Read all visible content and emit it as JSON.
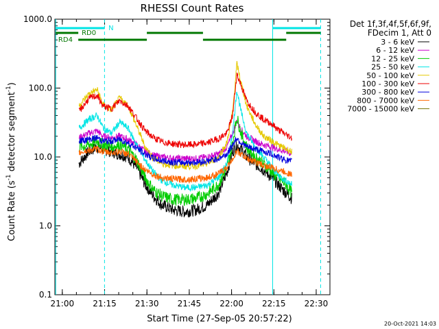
{
  "chart_data": {
    "type": "line",
    "title": "RHESSI Count Rates",
    "xlabel": "Start Time (27-Sep-05 20:57:22)",
    "ylabel_parts": [
      "Count Rate (s",
      "-1",
      " detector segment",
      "-1",
      ")"
    ],
    "yscale": "log",
    "ylim": [
      0.1,
      1000
    ],
    "xlim_minutes": [
      0,
      62
    ],
    "y_tick_labels": [
      "0.1",
      "1.0",
      "10.0",
      "100.0",
      "1000.0"
    ],
    "x_ticks": [
      {
        "label": "21:00",
        "minutes": 2.63
      },
      {
        "label": "21:15",
        "minutes": 17.63
      },
      {
        "label": "21:30",
        "minutes": 32.63
      },
      {
        "label": "21:45",
        "minutes": 47.63
      },
      {
        "label": "22:00",
        "minutes": 62.63
      },
      {
        "label": "22:15",
        "minutes": 77.63
      },
      {
        "label": "22:30",
        "minutes": 92.63
      }
    ],
    "x_range_minutes": [
      0,
      97.5
    ],
    "legend_header": [
      "Det 1f,3f,4f,5f,6f,9f,",
      "FDecim 1, Att 0"
    ],
    "series": [
      {
        "name": "3 - 6 keV",
        "color": "#000000",
        "times": [
          8.5,
          12,
          15,
          17,
          20,
          23,
          26,
          29,
          32,
          35,
          38,
          42,
          46,
          50,
          54,
          58,
          61,
          63,
          64.5,
          66,
          68,
          71,
          74,
          77,
          79,
          82,
          84
        ],
        "values": [
          8,
          12,
          14,
          13,
          12,
          11,
          10,
          7,
          4,
          2.7,
          2.0,
          1.7,
          1.6,
          1.7,
          2.0,
          3.0,
          6.0,
          12,
          15,
          13,
          10,
          8,
          6.5,
          5,
          4,
          3,
          2.5
        ]
      },
      {
        "name": "6 - 12 keV",
        "color": "#cc00cc",
        "times": [
          8.5,
          12,
          15,
          17,
          20,
          23,
          26,
          29,
          32,
          35,
          38,
          42,
          46,
          50,
          54,
          58,
          61,
          63,
          64.5,
          66,
          68,
          71,
          74,
          77,
          79,
          82,
          84
        ],
        "values": [
          19,
          22,
          24,
          20,
          19,
          20,
          18,
          15,
          12,
          10.5,
          10,
          9.5,
          9.5,
          9.5,
          10,
          11,
          14,
          22,
          34,
          25,
          20,
          17,
          15,
          14,
          13,
          12,
          11
        ]
      },
      {
        "name": "12 - 25 keV",
        "color": "#00cc00",
        "times": [
          8.5,
          12,
          15,
          17,
          20,
          23,
          26,
          29,
          32,
          35,
          38,
          42,
          46,
          50,
          54,
          58,
          61,
          63,
          64.5,
          66,
          68,
          71,
          74,
          77,
          79,
          82,
          84
        ],
        "values": [
          14,
          15,
          17,
          15,
          14,
          15,
          13,
          9,
          5,
          3.3,
          2.7,
          2.4,
          2.4,
          2.5,
          2.9,
          4,
          7,
          16,
          38,
          22,
          14,
          10,
          8,
          6,
          5,
          4,
          3
        ]
      },
      {
        "name": "25 - 50 keV",
        "color": "#00e5e5",
        "times": [
          8.5,
          12,
          15,
          17,
          20,
          23,
          26,
          29,
          32,
          35,
          38,
          42,
          46,
          50,
          54,
          58,
          61,
          63,
          64.5,
          66,
          68,
          71,
          74,
          77,
          79,
          82,
          84
        ],
        "values": [
          26,
          35,
          40,
          27,
          22,
          32,
          26,
          15,
          9,
          6,
          4.5,
          3.9,
          3.6,
          3.6,
          3.9,
          5,
          8,
          22,
          95,
          45,
          22,
          14,
          10,
          7,
          5.5,
          4.5,
          4
        ]
      },
      {
        "name": "50 - 100 keV",
        "color": "#e5c800",
        "times": [
          8.5,
          12,
          15,
          17,
          20,
          23,
          26,
          29,
          32,
          35,
          38,
          42,
          46,
          50,
          54,
          58,
          61,
          63,
          64.5,
          66,
          68,
          71,
          74,
          77,
          79,
          82,
          84
        ],
        "values": [
          55,
          82,
          95,
          58,
          48,
          72,
          55,
          28,
          14,
          9.5,
          8,
          7.5,
          7.3,
          7.4,
          8,
          10,
          16,
          45,
          225,
          120,
          55,
          30,
          20,
          17,
          15,
          13,
          12
        ]
      },
      {
        "name": "100 - 300 keV",
        "color": "#ee0000",
        "times": [
          8.5,
          12,
          15,
          17,
          20,
          23,
          26,
          29,
          32,
          35,
          38,
          42,
          46,
          50,
          54,
          58,
          61,
          63,
          64.5,
          66,
          68,
          71,
          74,
          77,
          79,
          82,
          84
        ],
        "values": [
          45,
          70,
          78,
          55,
          50,
          66,
          55,
          36,
          24,
          19,
          16.5,
          15.5,
          15,
          15.2,
          16,
          18.5,
          22,
          40,
          160,
          110,
          65,
          45,
          35,
          30,
          25,
          21,
          19
        ]
      },
      {
        "name": "300 - 800 keV",
        "color": "#0000dd",
        "times": [
          8.5,
          12,
          15,
          17,
          20,
          23,
          26,
          29,
          32,
          35,
          38,
          42,
          46,
          50,
          54,
          58,
          61,
          63,
          64.5,
          66,
          68,
          71,
          74,
          77,
          79,
          82,
          84
        ],
        "values": [
          17,
          18,
          19,
          17,
          17,
          18,
          16,
          13.5,
          11,
          9.5,
          8.8,
          8.4,
          8.3,
          8.4,
          8.7,
          9.5,
          11,
          15,
          19,
          16,
          14,
          13,
          12,
          11,
          10,
          9,
          8.5
        ]
      },
      {
        "name": "800 - 7000 keV",
        "color": "#ff6600",
        "times": [
          8.5,
          12,
          15,
          17,
          20,
          23,
          26,
          29,
          32,
          35,
          38,
          42,
          46,
          50,
          54,
          58,
          61,
          63,
          64.5,
          66,
          68,
          71,
          74,
          77,
          79,
          82,
          84
        ],
        "values": [
          11.5,
          12.5,
          13,
          12,
          11.5,
          12,
          11,
          8.5,
          6.5,
          5.5,
          5,
          4.8,
          4.7,
          4.8,
          5,
          5.7,
          7,
          9.5,
          12,
          11,
          9.5,
          8.5,
          7.5,
          7,
          6.5,
          6,
          5.5
        ]
      },
      {
        "name": "7000 - 15000 keV",
        "color": "#707000",
        "times": [],
        "values": []
      }
    ],
    "top_bars": {
      "N": {
        "color": "#00e5e5",
        "segments": [
          [
            0,
            11
          ]
        ]
      },
      "RD0": {
        "color": "#007700",
        "segments": [
          [
            0,
            5
          ]
        ]
      },
      "RD4": {
        "color": "#007700",
        "segments": [
          [
            5,
            20
          ]
        ]
      }
    },
    "tick_marks_left": [
      0.2,
      0.3,
      0.4,
      0.5,
      0.6,
      0.7,
      0.8,
      0.9,
      2,
      3,
      4,
      5,
      6,
      7,
      8,
      9,
      20,
      30,
      40,
      50,
      60,
      70,
      80,
      90,
      200,
      300,
      400,
      500,
      600,
      700,
      800,
      900
    ]
  },
  "labels": {
    "n_label": "N",
    "rd0_label": "RD0",
    "rd4_label": "RD4",
    "footer_date": "20-Oct-2021 14:03"
  }
}
